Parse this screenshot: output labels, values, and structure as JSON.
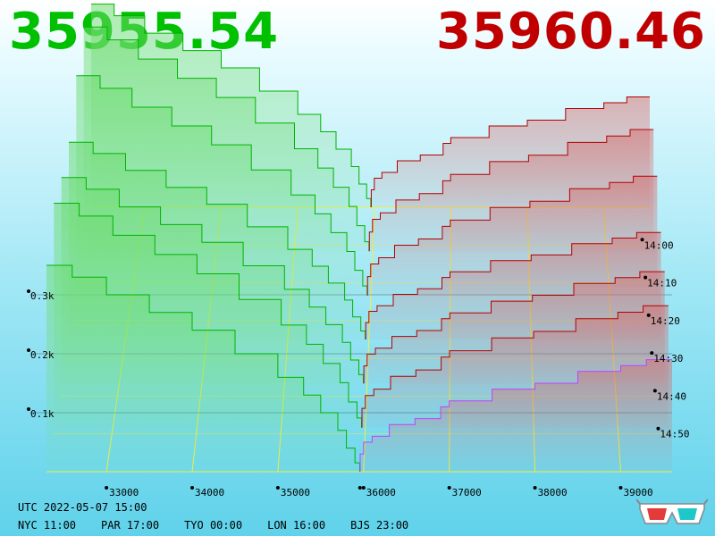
{
  "header": {
    "bid_price": "35955.54",
    "ask_price": "35960.46",
    "bid_color": "#00c000",
    "ask_color": "#c00000"
  },
  "clock": {
    "utc": "UTC 2022-05-07 15:00",
    "cities": [
      {
        "label": "NYC 11:00"
      },
      {
        "label": "PAR 17:00"
      },
      {
        "label": "TYO 00:00"
      },
      {
        "label": "LON 16:00"
      },
      {
        "label": "BJS 23:00"
      }
    ]
  },
  "icons": {
    "anaglyph": "3d-glasses-icon"
  },
  "chart_data": {
    "type": "area",
    "xlabel": "",
    "ylabel": "",
    "x_ticks": [
      "33000",
      "34000",
      "35000",
      "36000",
      "37000",
      "38000",
      "39000"
    ],
    "y_ticks": [
      "0.1k",
      "0.2k",
      "0.3k"
    ],
    "time_ticks": [
      "14:00",
      "14:10",
      "14:20",
      "14:30",
      "14:40",
      "14:50"
    ],
    "xlim": [
      32300,
      39600
    ],
    "zlim": [
      0,
      400
    ],
    "mid_price": 35958,
    "bid_color": "#00b400",
    "ask_color": "#b40000",
    "latest_ask_color": "#c040ff",
    "series": [
      {
        "side": "bid",
        "x": [
          32300,
          32600,
          33000,
          33500,
          34000,
          34500,
          35000,
          35300,
          35500,
          35700,
          35800,
          35900,
          35955
        ],
        "y": [
          35,
          33,
          30,
          27,
          24,
          20,
          16,
          13,
          10,
          7,
          4,
          1.5,
          0
        ]
      },
      {
        "side": "ask",
        "x": [
          35960,
          36000,
          36100,
          36300,
          36600,
          36900,
          37000,
          37500,
          38000,
          38500,
          39000,
          39300,
          39600
        ],
        "y": [
          0,
          3,
          5,
          6,
          8,
          9,
          11,
          12,
          14,
          15,
          17,
          18,
          19
        ]
      }
    ]
  }
}
